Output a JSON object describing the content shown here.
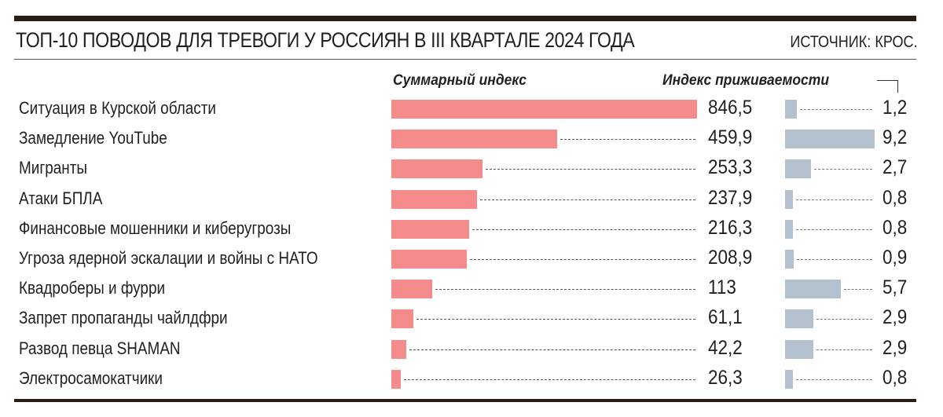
{
  "header": {
    "title": "ТОП-10 ПОВОДОВ ДЛЯ ТРЕВОГИ У РОССИЯН В III КВАРТАЛЕ 2024 ГОДА",
    "source": "ИСТОЧНИК: КРОС."
  },
  "columns": {
    "total_index": "Суммарный индекс",
    "survival_index": "Индекс приживаемости"
  },
  "colors": {
    "total_bar": "#f58b8b",
    "survival_bar": "#b3c0ce",
    "rule": "#2a1d14"
  },
  "rows": [
    {
      "label": "Ситуация в Курской области",
      "total": "846,5",
      "survival": "1,2"
    },
    {
      "label": "Замедление YouTube",
      "total": "459,9",
      "survival": "9,2"
    },
    {
      "label": "Мигранты",
      "total": "253,3",
      "survival": "2,7"
    },
    {
      "label": "Атаки БПЛА",
      "total": "237,9",
      "survival": "0,8"
    },
    {
      "label": "Финансовые мошенники и киберугрозы",
      "total": "216,3",
      "survival": "0,8"
    },
    {
      "label": "Угроза ядерной эскалации и войны с НАТО",
      "total": "208,9",
      "survival": "0,9"
    },
    {
      "label": "Квадроберы и фурри",
      "total": "113",
      "survival": "5,7"
    },
    {
      "label": "Запрет пропаганды чайлдфри",
      "total": "61,1",
      "survival": "2,9"
    },
    {
      "label": "Развод певца SHAMAN",
      "total": "42,2",
      "survival": "2,9"
    },
    {
      "label": "Электросамокатчики",
      "total": "26,3",
      "survival": "0,8"
    }
  ],
  "chart_data": {
    "type": "bar",
    "title": "ТОП-10 ПОВОДОВ ДЛЯ ТРЕВОГИ У РОССИЯН В III КВАРТАЛЕ 2024 ГОДА",
    "subtitle": "ИСТОЧНИК: КРОС.",
    "orientation": "horizontal",
    "categories": [
      "Ситуация в Курской области",
      "Замедление YouTube",
      "Мигранты",
      "Атаки БПЛА",
      "Финансовые мошенники и киберугрозы",
      "Угроза ядерной эскалации и войны с НАТО",
      "Квадроберы и фурри",
      "Запрет пропаганды чайлдфри",
      "Развод певца SHAMAN",
      "Электросамокатчики"
    ],
    "series": [
      {
        "name": "Суммарный индекс",
        "values": [
          846.5,
          459.9,
          253.3,
          237.9,
          216.3,
          208.9,
          113,
          61.1,
          42.2,
          26.3
        ]
      },
      {
        "name": "Индекс приживаемости",
        "values": [
          1.2,
          9.2,
          2.7,
          0.8,
          0.8,
          0.9,
          5.7,
          2.9,
          2.9,
          0.8
        ]
      }
    ],
    "xlabel": "",
    "ylabel": "",
    "grid": false
  }
}
